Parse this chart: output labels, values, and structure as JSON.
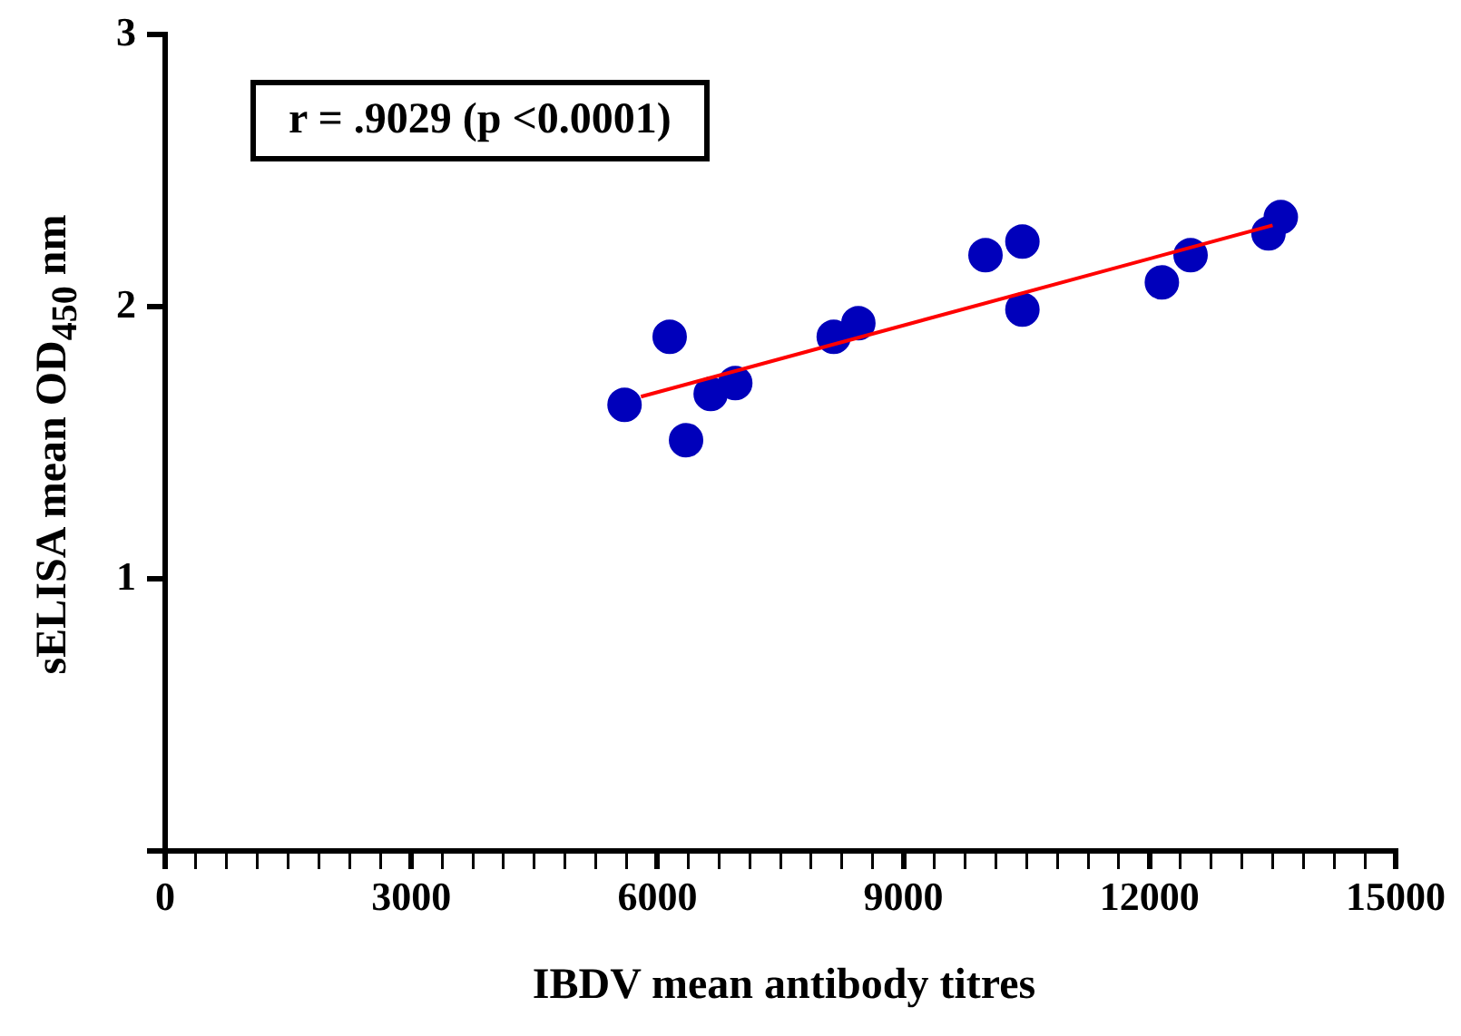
{
  "chart_data": {
    "type": "scatter",
    "xlabel": "IBDV mean antibody titres",
    "ylabel": "sELISA mean OD$_{450}$ nm",
    "annotations": [
      "r = .9029 (p <0.0001)"
    ],
    "xlim": [
      0,
      15000
    ],
    "xticks": [
      0,
      3000,
      6000,
      9000,
      12000,
      15000
    ],
    "ylim": [
      0,
      3
    ],
    "yticks": [
      {
        "value": 0,
        "label": null
      },
      1,
      2,
      3
    ],
    "grid": false,
    "legend": false,
    "marker": "circle",
    "series": [
      {
        "type": "scatter",
        "color": "#0000bb",
        "x": [
          5600,
          6150,
          6350,
          6650,
          6950,
          8150,
          8450,
          10000,
          10450,
          10450,
          12150,
          12500,
          13450,
          13600
        ],
        "values": [
          1.64,
          1.89,
          1.51,
          1.68,
          1.72,
          1.89,
          1.94,
          2.19,
          2.24,
          1.99,
          2.09,
          2.19,
          2.27,
          2.33
        ]
      },
      {
        "type": "line",
        "color": "#ff0000",
        "marker": "none",
        "x": [
          5800,
          13500
        ],
        "values": [
          1.67,
          2.3
        ]
      }
    ]
  }
}
